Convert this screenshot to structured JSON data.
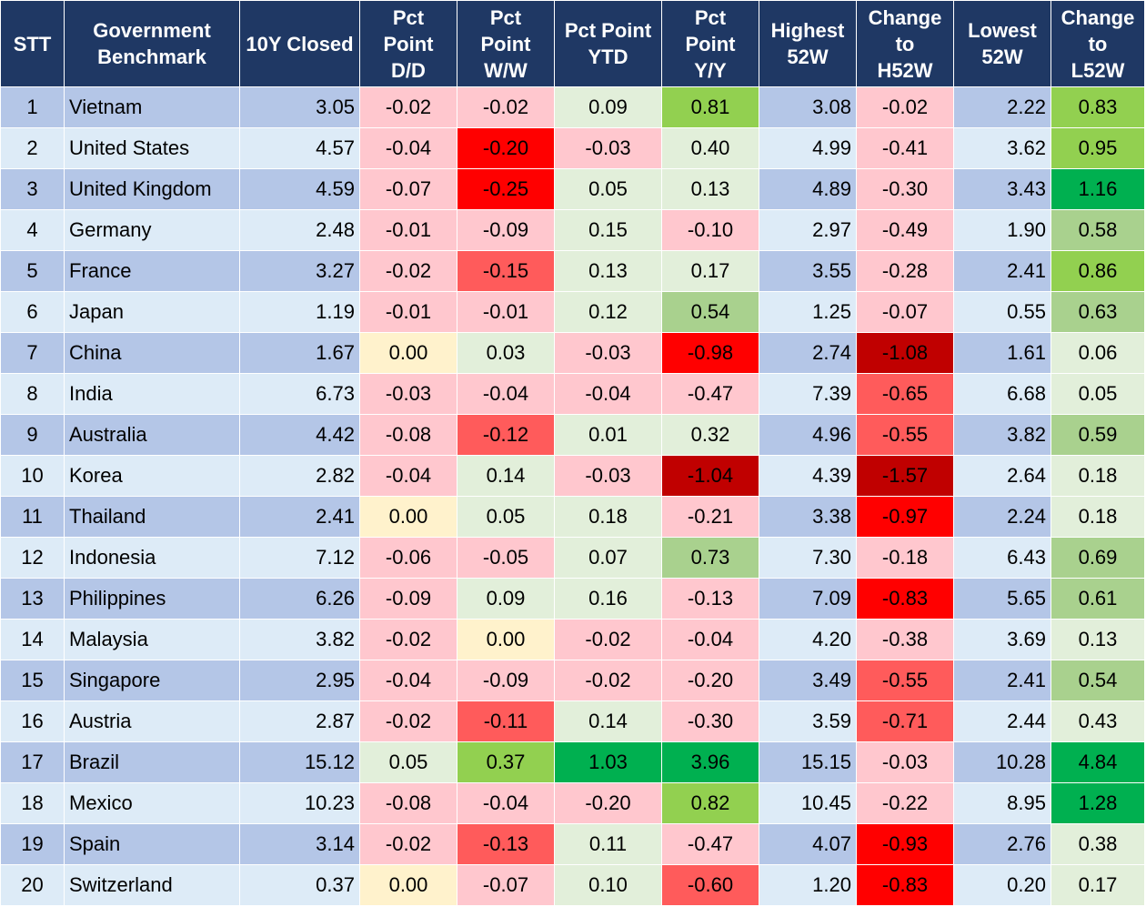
{
  "columns": [
    "STT",
    "Government\nBenchmark",
    "10Y Closed",
    "Pct\nPoint\nD/D",
    "Pct\nPoint\nW/W",
    "Pct Point\nYTD",
    "Pct\nPoint\nY/Y",
    "Highest\n52W",
    "Change\nto\nH52W",
    "Lowest\n52W",
    "Change\nto\nL52W"
  ],
  "colors": {
    "header_bg": "#1f3864",
    "header_text": "#ffffff",
    "row_band_dark": "#b4c6e7",
    "row_band_light": "#ddebf7",
    "neutral_zero": "#fff2cc",
    "neg_light": "#ffc7ce",
    "neg_mid": "#ff5b5b",
    "neg_strong": "#ff0000",
    "neg_deep": "#c00000",
    "pos_light": "#e2efda",
    "pos_mid": "#a9d18e",
    "pos_strong": "#92d050",
    "pos_deep": "#00b050"
  },
  "chart_data": {
    "type": "table",
    "rows": [
      {
        "stt": "1",
        "country": "Vietnam",
        "closed": "3.05",
        "dd": "-0.02",
        "ww": "-0.02",
        "ytd": "0.09",
        "yy": "0.81",
        "h52": "3.08",
        "ch52": "-0.02",
        "l52": "2.22",
        "cl52": "0.83"
      },
      {
        "stt": "2",
        "country": "United States",
        "closed": "4.57",
        "dd": "-0.04",
        "ww": "-0.20",
        "ytd": "-0.03",
        "yy": "0.40",
        "h52": "4.99",
        "ch52": "-0.41",
        "l52": "3.62",
        "cl52": "0.95"
      },
      {
        "stt": "3",
        "country": "United Kingdom",
        "closed": "4.59",
        "dd": "-0.07",
        "ww": "-0.25",
        "ytd": "0.05",
        "yy": "0.13",
        "h52": "4.89",
        "ch52": "-0.30",
        "l52": "3.43",
        "cl52": "1.16"
      },
      {
        "stt": "4",
        "country": "Germany",
        "closed": "2.48",
        "dd": "-0.01",
        "ww": "-0.09",
        "ytd": "0.15",
        "yy": "-0.10",
        "h52": "2.97",
        "ch52": "-0.49",
        "l52": "1.90",
        "cl52": "0.58"
      },
      {
        "stt": "5",
        "country": "France",
        "closed": "3.27",
        "dd": "-0.02",
        "ww": "-0.15",
        "ytd": "0.13",
        "yy": "0.17",
        "h52": "3.55",
        "ch52": "-0.28",
        "l52": "2.41",
        "cl52": "0.86"
      },
      {
        "stt": "6",
        "country": "Japan",
        "closed": "1.19",
        "dd": "-0.01",
        "ww": "-0.01",
        "ytd": "0.12",
        "yy": "0.54",
        "h52": "1.25",
        "ch52": "-0.07",
        "l52": "0.55",
        "cl52": "0.63"
      },
      {
        "stt": "7",
        "country": "China",
        "closed": "1.67",
        "dd": "0.00",
        "ww": "0.03",
        "ytd": "-0.03",
        "yy": "-0.98",
        "h52": "2.74",
        "ch52": "-1.08",
        "l52": "1.61",
        "cl52": "0.06"
      },
      {
        "stt": "8",
        "country": "India",
        "closed": "6.73",
        "dd": "-0.03",
        "ww": "-0.04",
        "ytd": "-0.04",
        "yy": "-0.47",
        "h52": "7.39",
        "ch52": "-0.65",
        "l52": "6.68",
        "cl52": "0.05"
      },
      {
        "stt": "9",
        "country": "Australia",
        "closed": "4.42",
        "dd": "-0.08",
        "ww": "-0.12",
        "ytd": "0.01",
        "yy": "0.32",
        "h52": "4.96",
        "ch52": "-0.55",
        "l52": "3.82",
        "cl52": "0.59"
      },
      {
        "stt": "10",
        "country": "Korea",
        "closed": "2.82",
        "dd": "-0.04",
        "ww": "0.14",
        "ytd": "-0.03",
        "yy": "-1.04",
        "h52": "4.39",
        "ch52": "-1.57",
        "l52": "2.64",
        "cl52": "0.18"
      },
      {
        "stt": "11",
        "country": "Thailand",
        "closed": "2.41",
        "dd": "0.00",
        "ww": "0.05",
        "ytd": "0.18",
        "yy": "-0.21",
        "h52": "3.38",
        "ch52": "-0.97",
        "l52": "2.24",
        "cl52": "0.18"
      },
      {
        "stt": "12",
        "country": "Indonesia",
        "closed": "7.12",
        "dd": "-0.06",
        "ww": "-0.05",
        "ytd": "0.07",
        "yy": "0.73",
        "h52": "7.30",
        "ch52": "-0.18",
        "l52": "6.43",
        "cl52": "0.69"
      },
      {
        "stt": "13",
        "country": "Philippines",
        "closed": "6.26",
        "dd": "-0.09",
        "ww": "0.09",
        "ytd": "0.16",
        "yy": "-0.13",
        "h52": "7.09",
        "ch52": "-0.83",
        "l52": "5.65",
        "cl52": "0.61"
      },
      {
        "stt": "14",
        "country": "Malaysia",
        "closed": "3.82",
        "dd": "-0.02",
        "ww": "0.00",
        "ytd": "-0.02",
        "yy": "-0.04",
        "h52": "4.20",
        "ch52": "-0.38",
        "l52": "3.69",
        "cl52": "0.13"
      },
      {
        "stt": "15",
        "country": "Singapore",
        "closed": "2.95",
        "dd": "-0.04",
        "ww": "-0.09",
        "ytd": "-0.02",
        "yy": "-0.20",
        "h52": "3.49",
        "ch52": "-0.55",
        "l52": "2.41",
        "cl52": "0.54"
      },
      {
        "stt": "16",
        "country": "Austria",
        "closed": "2.87",
        "dd": "-0.02",
        "ww": "-0.11",
        "ytd": "0.14",
        "yy": "-0.30",
        "h52": "3.59",
        "ch52": "-0.71",
        "l52": "2.44",
        "cl52": "0.43"
      },
      {
        "stt": "17",
        "country": "Brazil",
        "closed": "15.12",
        "dd": "0.05",
        "ww": "0.37",
        "ytd": "1.03",
        "yy": "3.96",
        "h52": "15.15",
        "ch52": "-0.03",
        "l52": "10.28",
        "cl52": "4.84"
      },
      {
        "stt": "18",
        "country": "Mexico",
        "closed": "10.23",
        "dd": "-0.08",
        "ww": "-0.04",
        "ytd": "-0.20",
        "yy": "0.82",
        "h52": "10.45",
        "ch52": "-0.22",
        "l52": "8.95",
        "cl52": "1.28"
      },
      {
        "stt": "19",
        "country": "Spain",
        "closed": "3.14",
        "dd": "-0.02",
        "ww": "-0.13",
        "ytd": "0.11",
        "yy": "-0.47",
        "h52": "4.07",
        "ch52": "-0.93",
        "l52": "2.76",
        "cl52": "0.38"
      },
      {
        "stt": "20",
        "country": "Switzerland",
        "closed": "0.37",
        "dd": "0.00",
        "ww": "-0.07",
        "ytd": "0.10",
        "yy": "-0.60",
        "h52": "1.20",
        "ch52": "-0.83",
        "l52": "0.20",
        "cl52": "0.17"
      }
    ]
  }
}
